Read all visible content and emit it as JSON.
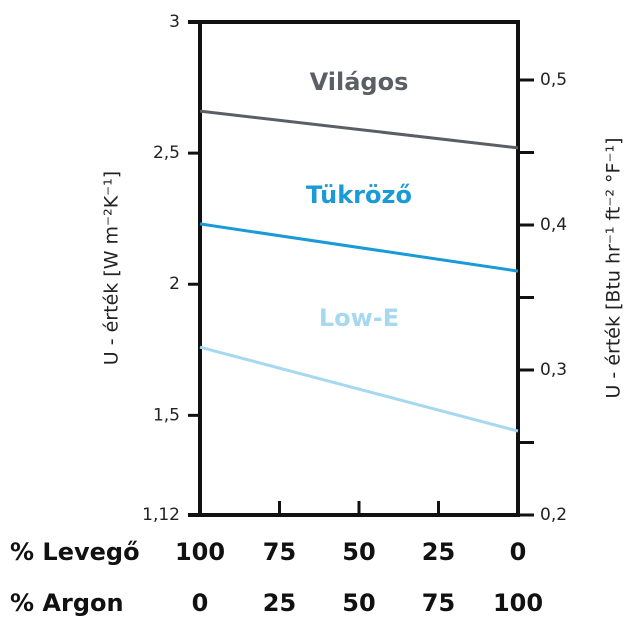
{
  "chart_data": {
    "type": "line",
    "y_label": "U - érték [W m⁻²K⁻¹]",
    "y2_label": "U - érték [Btu hr⁻¹ ft⁻² °F⁻¹]",
    "x_row_labels": [
      "% Levegő",
      "% Argon"
    ],
    "x": [
      100,
      75,
      50,
      25,
      0
    ],
    "x_argon": [
      0,
      25,
      50,
      75,
      100
    ],
    "xlim": [
      100,
      0
    ],
    "ylim": [
      1.12,
      3
    ],
    "yticks": [
      {
        "value": 1.12,
        "label": "1,12"
      },
      {
        "value": 1.5,
        "label": "1,5"
      },
      2,
      {
        "value": 2.5,
        "label": "2,5"
      },
      3
    ],
    "y2lim": [
      0.2,
      0.54
    ],
    "y2ticks": [
      {
        "value": 0.2,
        "label": "0,2"
      },
      {
        "value": 0.3,
        "label": "0,3"
      },
      {
        "value": 0.4,
        "label": "0,4"
      },
      {
        "value": 0.5,
        "label": "0,5"
      }
    ],
    "y2minor_ticks": [
      0.25,
      0.35,
      0.45
    ],
    "series": [
      {
        "name": "Világos",
        "color": "#5a5f66",
        "values": [
          2.66,
          null,
          null,
          null,
          2.52
        ]
      },
      {
        "name": "Tükröző",
        "color": "#1a9ad6",
        "values": [
          2.23,
          null,
          null,
          null,
          2.05
        ]
      },
      {
        "name": "Low-E",
        "color": "#a6d8f0",
        "values": [
          1.76,
          null,
          null,
          null,
          1.44
        ]
      }
    ]
  }
}
